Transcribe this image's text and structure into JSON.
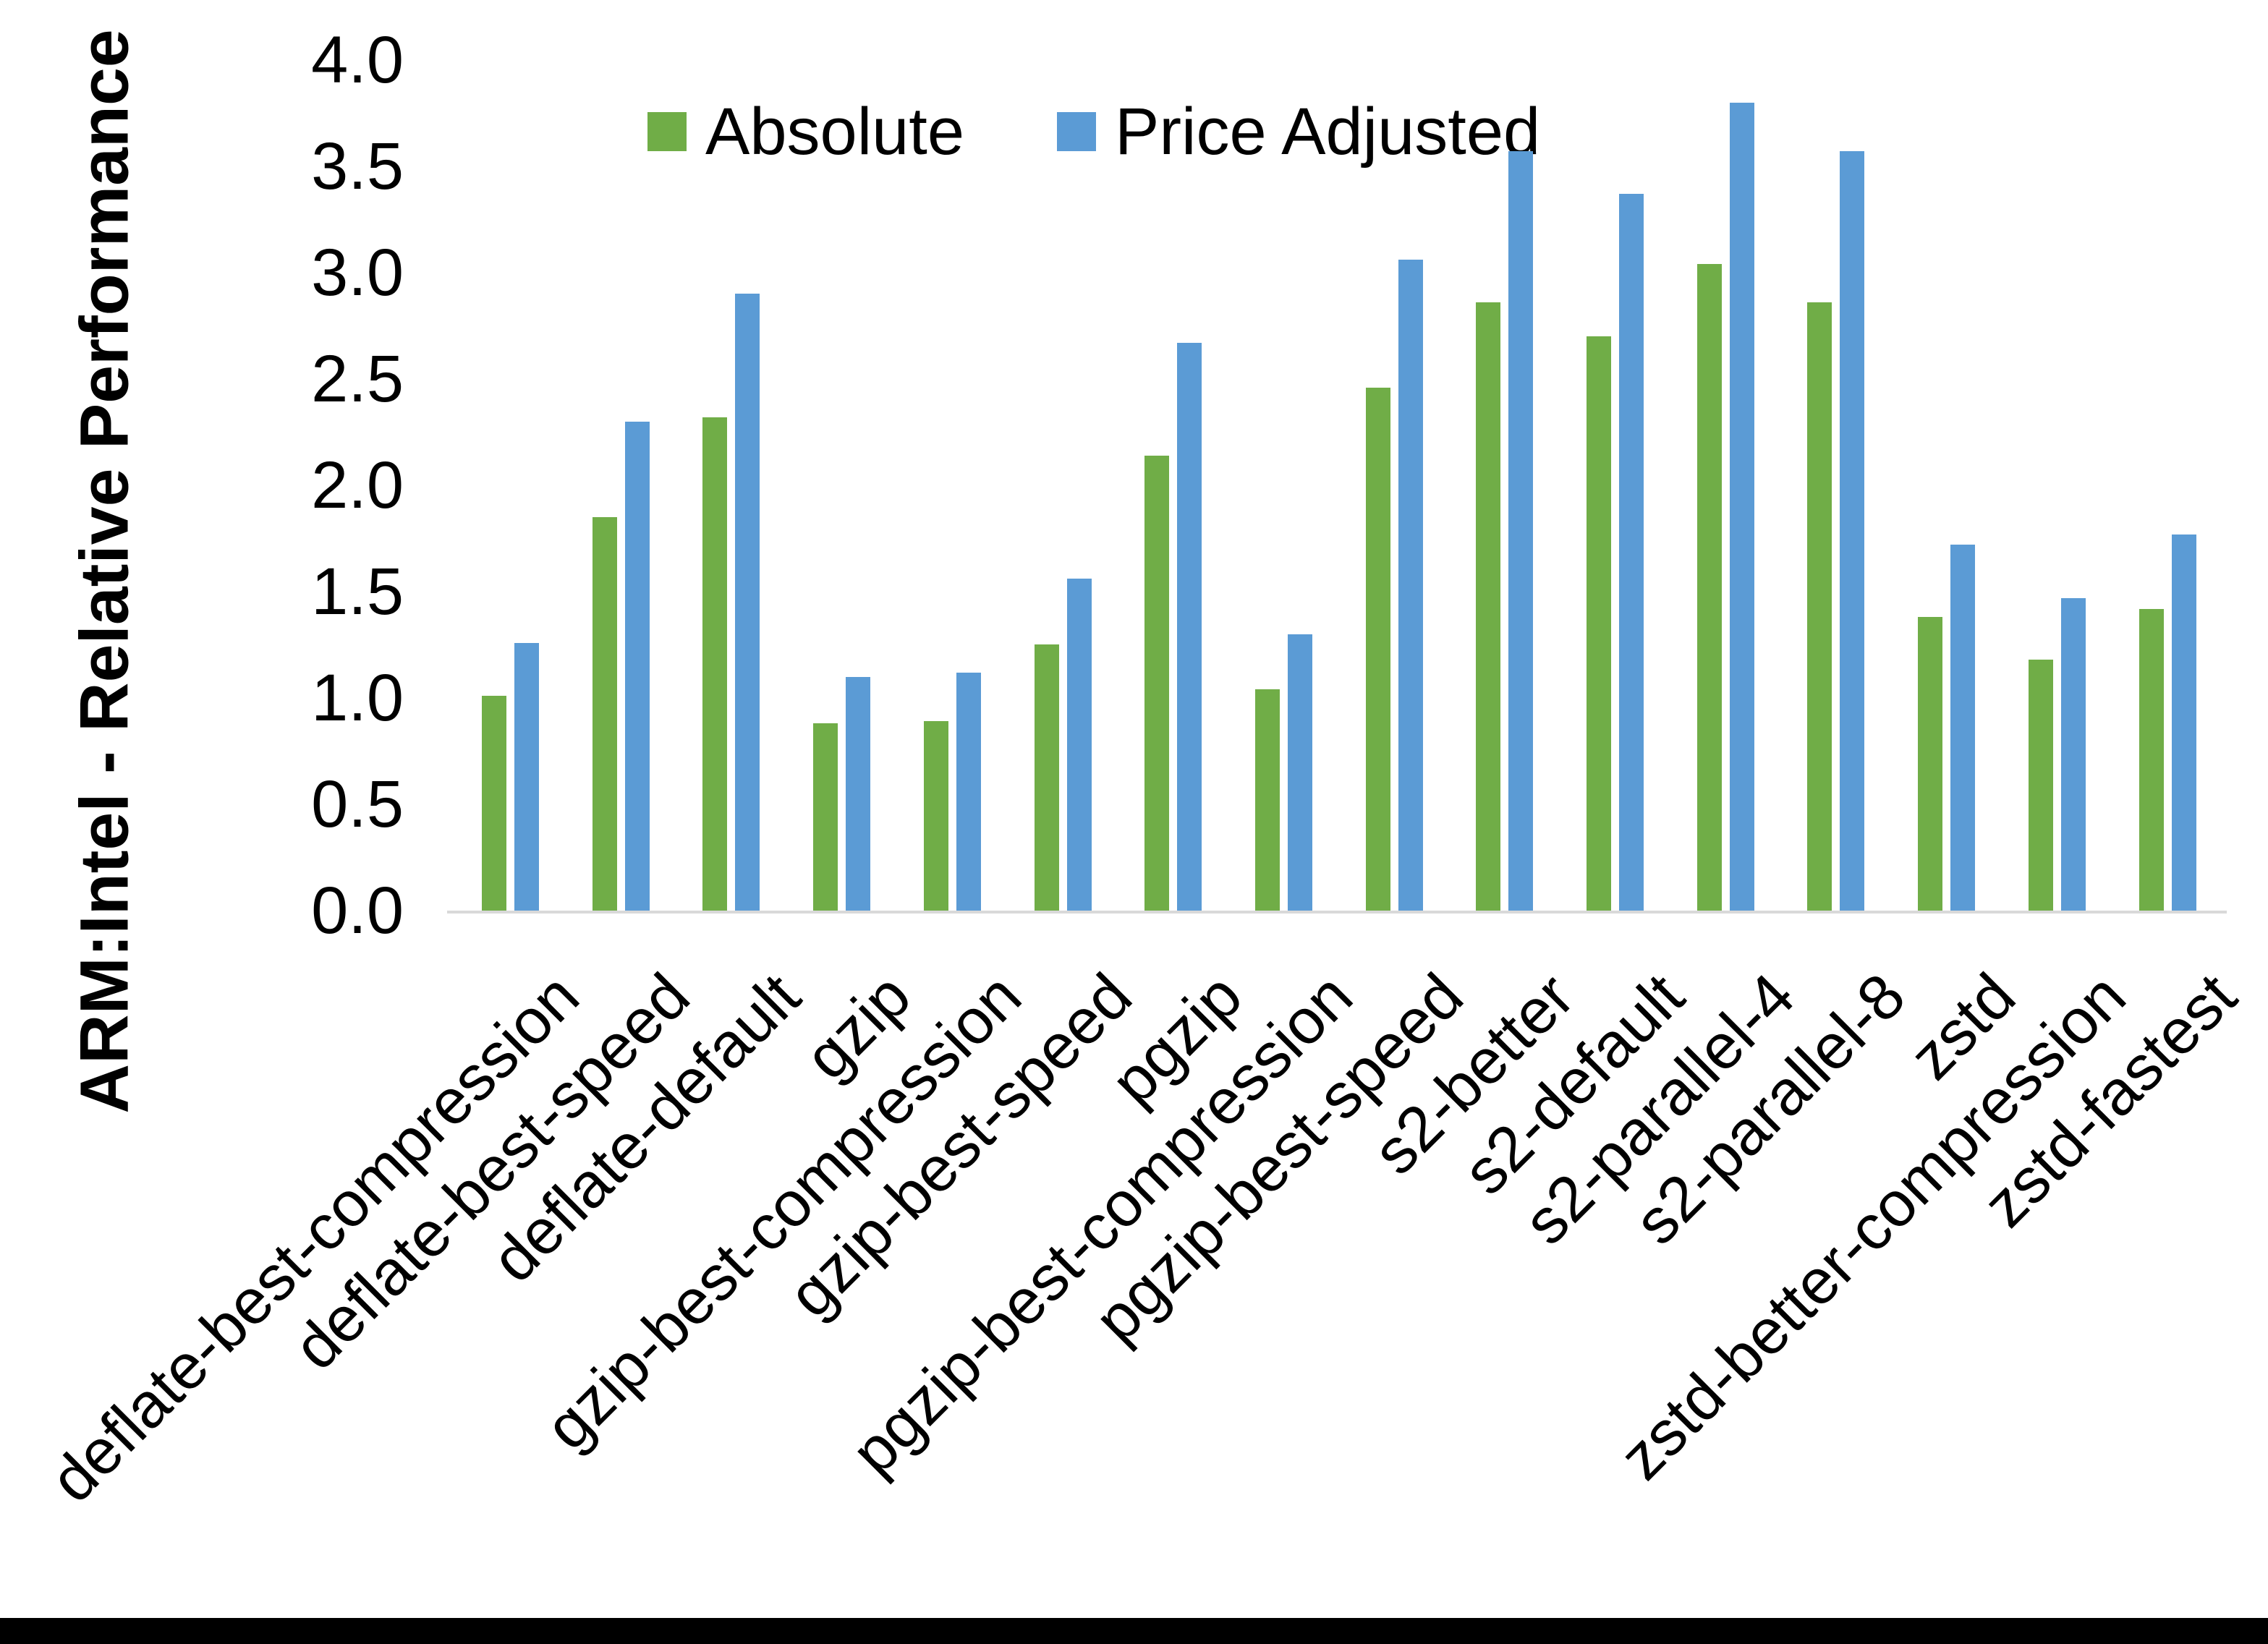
{
  "chart_data": {
    "type": "bar",
    "title": "",
    "ylabel": "ARM:Intel - Relative Performance",
    "xlabel": "",
    "ylim": [
      0.0,
      4.0
    ],
    "ytick_step": 0.5,
    "yticks": [
      "0.0",
      "0.5",
      "1.0",
      "1.5",
      "2.0",
      "2.5",
      "3.0",
      "3.5",
      "4.0"
    ],
    "grid": false,
    "legend_position": "top-center",
    "categories": [
      "deflate-best-compression",
      "deflate-best-speed",
      "deflate-default",
      "gzip",
      "gzip-best-compression",
      "gzip-best-speed",
      "pgzip",
      "pgzip-best-compression",
      "pgzip-best-speed",
      "s2-better",
      "s2-default",
      "s2-parallel-4",
      "s2-parallel-8",
      "zstd",
      "zstd-better-compression",
      "zstd-fastest"
    ],
    "series": [
      {
        "name": "Absolute",
        "color": "#70AD47",
        "values": [
          1.01,
          1.85,
          2.32,
          0.88,
          0.89,
          1.25,
          2.14,
          1.04,
          2.46,
          2.86,
          2.7,
          3.04,
          2.86,
          1.38,
          1.18,
          1.42
        ]
      },
      {
        "name": "Price Adjusted",
        "color": "#5B9BD5",
        "values": [
          1.26,
          2.3,
          2.9,
          1.1,
          1.12,
          1.56,
          2.67,
          1.3,
          3.06,
          3.57,
          3.37,
          3.8,
          3.57,
          1.72,
          1.47,
          1.77
        ]
      }
    ]
  },
  "colors": {
    "background": "#FFFFFF",
    "axis_line": "#D9D9D9",
    "text": "#000000",
    "bottom_border": "#000000"
  }
}
